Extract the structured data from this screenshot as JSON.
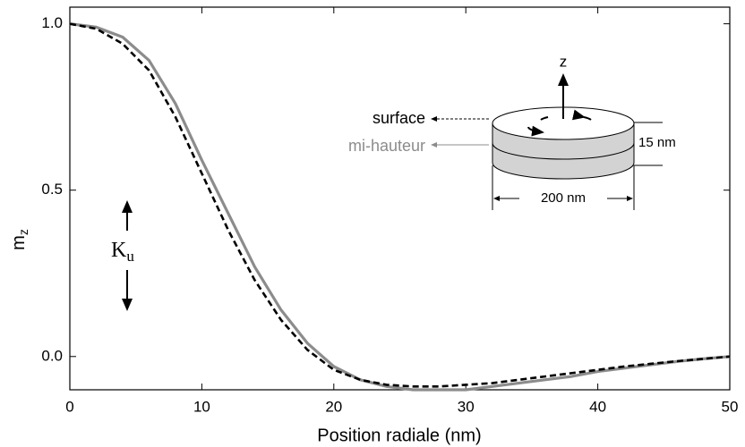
{
  "chart_data": {
    "type": "line",
    "xlabel": "Position radiale (nm)",
    "ylabel": "m",
    "ylabel_subscript": "z",
    "x": [
      0,
      2,
      4,
      6,
      8,
      10,
      12,
      14,
      16,
      18,
      20,
      22,
      24,
      26,
      28,
      30,
      32,
      34,
      36,
      38,
      40,
      42,
      44,
      46,
      48,
      50
    ],
    "series": [
      {
        "name": "surface",
        "color": "#000000",
        "dash": true,
        "values": [
          1.0,
          0.985,
          0.94,
          0.86,
          0.72,
          0.55,
          0.38,
          0.23,
          0.11,
          0.02,
          -0.04,
          -0.07,
          -0.085,
          -0.09,
          -0.09,
          -0.085,
          -0.08,
          -0.07,
          -0.06,
          -0.05,
          -0.04,
          -0.03,
          -0.022,
          -0.014,
          -0.007,
          0.0
        ]
      },
      {
        "name": "mi-hauteur",
        "color": "#8c8c8c",
        "dash": false,
        "values": [
          1.0,
          0.99,
          0.96,
          0.89,
          0.76,
          0.59,
          0.43,
          0.27,
          0.14,
          0.04,
          -0.03,
          -0.07,
          -0.09,
          -0.1,
          -0.1,
          -0.1,
          -0.09,
          -0.08,
          -0.07,
          -0.06,
          -0.045,
          -0.035,
          -0.025,
          -0.015,
          -0.007,
          0.0
        ]
      }
    ],
    "xlim": [
      0,
      50
    ],
    "xticks": [
      0,
      10,
      20,
      30,
      40,
      50
    ],
    "ylim": [
      -0.1,
      1.05
    ],
    "yticks": [
      {
        "value": 0,
        "label": "0.0"
      },
      0.5,
      {
        "value": 1,
        "label": "1.0"
      }
    ],
    "annotations": {
      "anisotropy": "K",
      "anisotropy_subscript": "u",
      "axis_z": "z",
      "thickness": "15 nm",
      "diameter": "200 nm"
    }
  }
}
